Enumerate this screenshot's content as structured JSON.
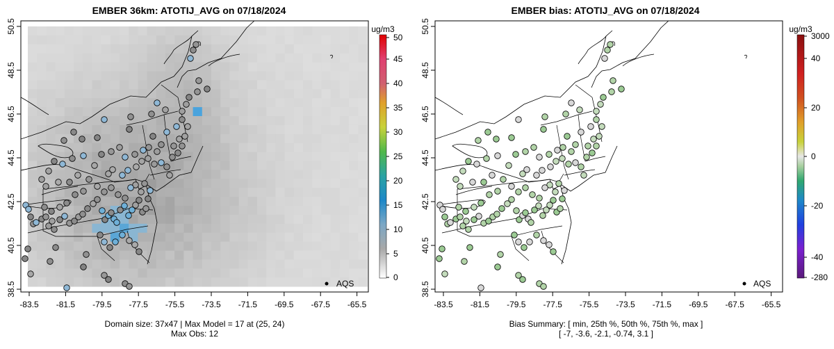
{
  "panels": [
    {
      "title": "EMBER 36km: ATOTIJ_AVG on 07/18/2024",
      "legend_label": "AQS",
      "x_ticks": [
        "-83.5",
        "-81.5",
        "-79.5",
        "-77.5",
        "-75.5",
        "-73.5",
        "-71.5",
        "-69.5",
        "-67.5",
        "-65.5"
      ],
      "y_ticks": [
        "38.5",
        "40.5",
        "42.5",
        "44.5",
        "46.5",
        "48.5",
        "50.5"
      ],
      "colorbar_unit": "ug/m3",
      "colorbar_ticks": [
        "0",
        "5",
        "10",
        "15",
        "20",
        "25",
        "30",
        "35",
        "40",
        "45",
        "50"
      ],
      "footer_line1": "Domain size: 37x47 | Max Model = 17 at (25, 24)",
      "footer_line2": "Max Obs: 12"
    },
    {
      "title": "EMBER bias: ATOTIJ_AVG on 07/18/2024",
      "legend_label": "AQS",
      "x_ticks": [
        "-83.5",
        "-81.5",
        "-79.5",
        "-77.5",
        "-75.5",
        "-73.5",
        "-71.5",
        "-69.5",
        "-67.5",
        "-65.5"
      ],
      "y_ticks": [
        "38.5",
        "40.5",
        "42.5",
        "44.5",
        "46.5",
        "48.5",
        "50.5"
      ],
      "colorbar_unit": "ug/m3",
      "colorbar_ticks": [
        "3000",
        "40",
        "20",
        "0",
        "-20",
        "-40",
        "-280"
      ],
      "footer_line1": "Bias Summary: [ min, 25th %, 50th %, 75th %, max ]",
      "footer_line2": "[ -7,   -3.6,   -2.1,   -0.74,   3.1 ]"
    }
  ],
  "colors": {
    "background": "#ffffff",
    "frame": "#000000",
    "state_lines": "#000000"
  }
}
